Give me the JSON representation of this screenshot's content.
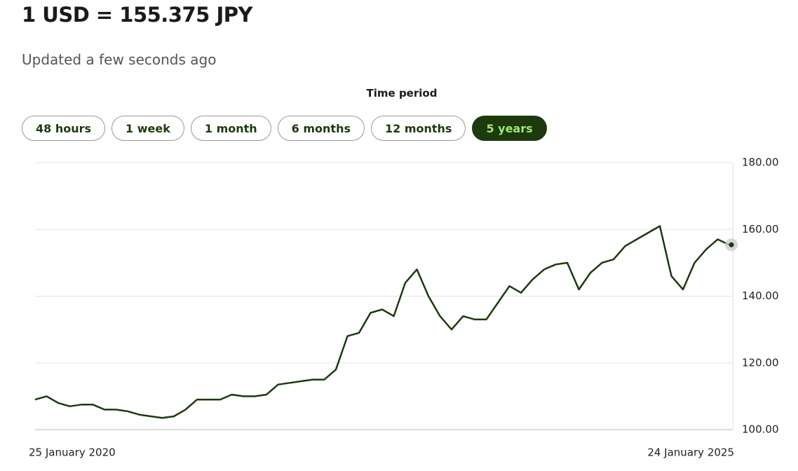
{
  "header": {
    "title": "1 USD = 155.375 JPY",
    "updated": "Updated a few seconds ago"
  },
  "time_period": {
    "label": "Time period",
    "options": [
      "48 hours",
      "1 week",
      "1 month",
      "6 months",
      "12 months",
      "5 years"
    ]
  },
  "chart_data": {
    "type": "line",
    "color": "#1c3a0e",
    "grid": true,
    "categories": [
      "25 January 2020",
      null,
      null,
      null,
      null,
      null,
      null,
      null,
      null,
      null,
      null,
      null,
      null,
      null,
      null,
      null,
      null,
      null,
      null,
      null,
      null,
      null,
      null,
      null,
      null,
      null,
      null,
      null,
      null,
      null,
      null,
      null,
      null,
      null,
      null,
      null,
      null,
      null,
      null,
      null,
      null,
      null,
      null,
      null,
      null,
      null,
      null,
      null,
      null,
      null,
      null,
      null,
      null,
      null,
      null,
      null,
      null,
      null,
      null,
      null,
      "24 January 2025"
    ],
    "values": [
      109,
      110,
      108,
      107,
      107.5,
      107.5,
      106,
      106,
      105.5,
      104.5,
      104,
      103.5,
      104,
      106,
      109,
      109,
      109,
      110.5,
      110,
      110,
      110.5,
      113.5,
      114,
      114.5,
      115,
      115,
      118,
      128,
      129,
      135,
      136,
      134,
      144,
      148,
      140,
      134,
      130,
      134,
      133,
      133,
      138,
      143,
      141,
      145,
      148,
      149.5,
      150,
      142,
      147,
      150,
      151,
      155,
      157,
      159,
      161,
      146,
      142,
      150,
      154,
      157,
      155.375
    ],
    "ylim": [
      100,
      180
    ],
    "yticks": [
      {
        "value": 100,
        "label": "100.00"
      },
      {
        "value": 120,
        "label": "120.00"
      },
      {
        "value": 140,
        "label": "140.00"
      },
      {
        "value": 160,
        "label": "160.00"
      },
      {
        "value": 180,
        "label": "180.00"
      }
    ]
  }
}
